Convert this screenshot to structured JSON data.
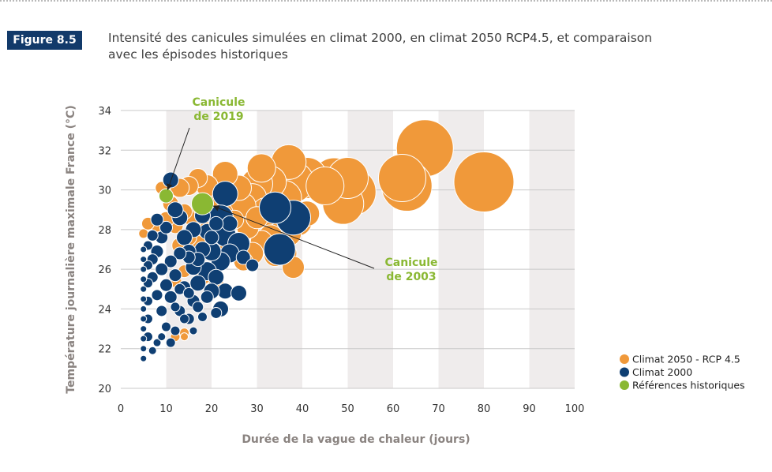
{
  "header": {
    "figure_label": "Figure 8.5",
    "title_line1": "Intensité des canicules simulées en climat 2000, en climat 2050 RCP4.5, et comparaison",
    "title_line2": "avec les épisodes historiques"
  },
  "colors": {
    "climat_2050": "#f0993a",
    "climat_2000": "#0f3f73",
    "historique": "#8ab833",
    "badge": "#123a6a",
    "stripe": "#efecec",
    "gridline": "#c8c8c8"
  },
  "chart_data": {
    "type": "scatter",
    "bubble": true,
    "xlabel": "Durée de la vague de chaleur (jours)",
    "ylabel": "Température journalière maximale France (°C)",
    "xlim": [
      0,
      100
    ],
    "ylim": [
      20,
      34
    ],
    "xticks": [
      0,
      10,
      20,
      30,
      40,
      50,
      60,
      70,
      80,
      90,
      100
    ],
    "yticks": [
      20,
      22,
      24,
      26,
      28,
      30,
      32,
      34
    ],
    "legend_position": "right",
    "series": [
      {
        "name": "Climat 2050 - RCP 4.5",
        "color": "#f0993a",
        "points": [
          [
            80,
            30.4,
            38
          ],
          [
            67,
            32.1,
            36
          ],
          [
            63,
            30.2,
            32
          ],
          [
            62,
            30.6,
            30
          ],
          [
            51,
            29.9,
            30
          ],
          [
            47,
            30.5,
            28
          ],
          [
            49,
            29.3,
            26
          ],
          [
            50,
            30.6,
            26
          ],
          [
            45,
            30.2,
            24
          ],
          [
            41,
            30.6,
            26
          ],
          [
            37,
            31.4,
            22
          ],
          [
            38,
            30.4,
            26
          ],
          [
            36,
            29.6,
            22
          ],
          [
            33,
            30.4,
            20
          ],
          [
            31,
            31.1,
            18
          ],
          [
            30,
            30.3,
            20
          ],
          [
            29,
            29.6,
            18
          ],
          [
            32,
            28.9,
            18
          ],
          [
            27,
            29.2,
            16
          ],
          [
            26,
            30.1,
            16
          ],
          [
            23,
            30.8,
            16
          ],
          [
            22,
            28.8,
            16
          ],
          [
            20,
            29.7,
            14
          ],
          [
            19,
            30.2,
            14
          ],
          [
            17,
            30.6,
            12
          ],
          [
            15,
            30.2,
            12
          ],
          [
            13,
            30.1,
            12
          ],
          [
            9,
            30.1,
            8
          ],
          [
            11,
            29.3,
            10
          ],
          [
            16,
            28.6,
            12
          ],
          [
            14,
            28.9,
            10
          ],
          [
            12,
            28.2,
            10
          ],
          [
            10,
            28.5,
            10
          ],
          [
            8,
            28.2,
            8
          ],
          [
            6,
            28.3,
            8
          ],
          [
            5,
            27.8,
            6
          ],
          [
            35,
            28.8,
            20
          ],
          [
            39,
            28.4,
            18
          ],
          [
            41,
            28.8,
            16
          ],
          [
            37,
            27.8,
            16
          ],
          [
            33,
            27.6,
            16
          ],
          [
            36,
            26.8,
            16
          ],
          [
            38,
            26.1,
            14
          ],
          [
            34,
            26.7,
            14
          ],
          [
            31,
            27.4,
            14
          ],
          [
            29,
            26.8,
            14
          ],
          [
            27,
            26.4,
            12
          ],
          [
            25,
            27.3,
            12
          ],
          [
            23,
            26.8,
            12
          ],
          [
            21,
            27.6,
            12
          ],
          [
            19,
            27.9,
            12
          ],
          [
            17,
            27.3,
            10
          ],
          [
            15,
            27.6,
            10
          ],
          [
            13,
            27.2,
            10
          ],
          [
            18,
            25.6,
            10
          ],
          [
            21,
            25.2,
            10
          ],
          [
            16,
            26.1,
            10
          ],
          [
            14,
            25.9,
            8
          ],
          [
            12,
            25.4,
            8
          ],
          [
            28,
            28.1,
            14
          ],
          [
            30,
            28.6,
            14
          ],
          [
            25,
            28.5,
            12
          ],
          [
            18,
            29.1,
            12
          ],
          [
            14,
            22.8,
            6
          ],
          [
            12,
            22.6,
            6
          ],
          [
            14,
            22.6,
            5
          ],
          [
            26,
            24.8,
            8
          ]
        ]
      },
      {
        "name": "Climat 2000",
        "color": "#0f3f73",
        "points": [
          [
            38,
            28.6,
            22
          ],
          [
            34,
            29.1,
            20
          ],
          [
            35,
            27.0,
            20
          ],
          [
            23,
            29.8,
            16
          ],
          [
            22,
            28.6,
            16
          ],
          [
            23,
            27.7,
            14
          ],
          [
            26,
            27.3,
            14
          ],
          [
            24,
            26.8,
            12
          ],
          [
            22,
            26.4,
            12
          ],
          [
            20,
            26.9,
            12
          ],
          [
            19,
            25.9,
            12
          ],
          [
            21,
            25.6,
            10
          ],
          [
            23,
            24.9,
            10
          ],
          [
            26,
            24.8,
            10
          ],
          [
            22,
            24.0,
            10
          ],
          [
            20,
            24.9,
            10
          ],
          [
            17,
            25.3,
            10
          ],
          [
            16,
            26.1,
            10
          ],
          [
            18,
            27.0,
            10
          ],
          [
            19,
            27.9,
            10
          ],
          [
            18,
            28.7,
            10
          ],
          [
            16,
            28.0,
            10
          ],
          [
            14,
            27.6,
            10
          ],
          [
            13,
            28.6,
            10
          ],
          [
            12,
            29.0,
            10
          ],
          [
            11,
            30.5,
            10
          ],
          [
            15,
            26.6,
            8
          ],
          [
            13,
            26.8,
            8
          ],
          [
            11,
            26.4,
            8
          ],
          [
            12,
            25.7,
            8
          ],
          [
            14,
            25.1,
            8
          ],
          [
            16,
            24.4,
            8
          ],
          [
            15,
            23.5,
            7
          ],
          [
            13,
            23.9,
            7
          ],
          [
            11,
            24.6,
            8
          ],
          [
            10,
            25.2,
            8
          ],
          [
            9,
            26.0,
            8
          ],
          [
            8,
            26.9,
            8
          ],
          [
            9,
            27.6,
            8
          ],
          [
            10,
            28.1,
            8
          ],
          [
            8,
            28.5,
            8
          ],
          [
            7,
            27.7,
            7
          ],
          [
            7,
            26.5,
            7
          ],
          [
            7,
            25.6,
            7
          ],
          [
            8,
            24.7,
            7
          ],
          [
            9,
            23.9,
            7
          ],
          [
            10,
            23.1,
            6
          ],
          [
            11,
            22.3,
            6
          ],
          [
            12,
            22.9,
            6
          ],
          [
            14,
            23.5,
            6
          ],
          [
            17,
            24.1,
            7
          ],
          [
            18,
            23.6,
            6
          ],
          [
            21,
            23.8,
            7
          ],
          [
            19,
            24.6,
            8
          ],
          [
            6,
            27.2,
            6
          ],
          [
            6,
            26.2,
            6
          ],
          [
            6,
            25.3,
            6
          ],
          [
            6,
            24.4,
            6
          ],
          [
            6,
            23.5,
            6
          ],
          [
            6,
            22.6,
            6
          ],
          [
            5,
            21.5,
            4
          ],
          [
            5,
            22.0,
            4
          ],
          [
            5,
            22.5,
            4
          ],
          [
            5,
            23.0,
            4
          ],
          [
            5,
            23.5,
            4
          ],
          [
            5,
            24.0,
            4
          ],
          [
            5,
            24.5,
            4
          ],
          [
            5,
            25.0,
            4
          ],
          [
            5,
            25.5,
            4
          ],
          [
            5,
            26.0,
            4
          ],
          [
            5,
            26.5,
            4
          ],
          [
            5,
            27.0,
            4
          ],
          [
            7,
            21.9,
            5
          ],
          [
            8,
            22.3,
            5
          ],
          [
            9,
            22.6,
            5
          ],
          [
            15,
            26.9,
            9
          ],
          [
            17,
            26.5,
            9
          ],
          [
            21,
            28.3,
            9
          ],
          [
            20,
            27.6,
            9
          ],
          [
            24,
            28.3,
            10
          ],
          [
            27,
            26.6,
            9
          ],
          [
            29,
            26.2,
            8
          ],
          [
            13,
            25.0,
            7
          ],
          [
            15,
            24.8,
            7
          ],
          [
            16,
            22.9,
            5
          ],
          [
            12,
            24.1,
            6
          ]
        ]
      },
      {
        "name": "Références historiques",
        "color": "#8ab833",
        "points": [
          [
            10,
            29.7,
            9
          ],
          [
            18,
            29.3,
            14
          ]
        ]
      }
    ],
    "annotations": [
      {
        "line1": "Canicule",
        "line2": "de 2019",
        "target_x": 10,
        "target_y": 29.7
      },
      {
        "line1": "Canicule",
        "line2": "de 2003",
        "target_x": 18,
        "target_y": 29.3
      }
    ]
  }
}
